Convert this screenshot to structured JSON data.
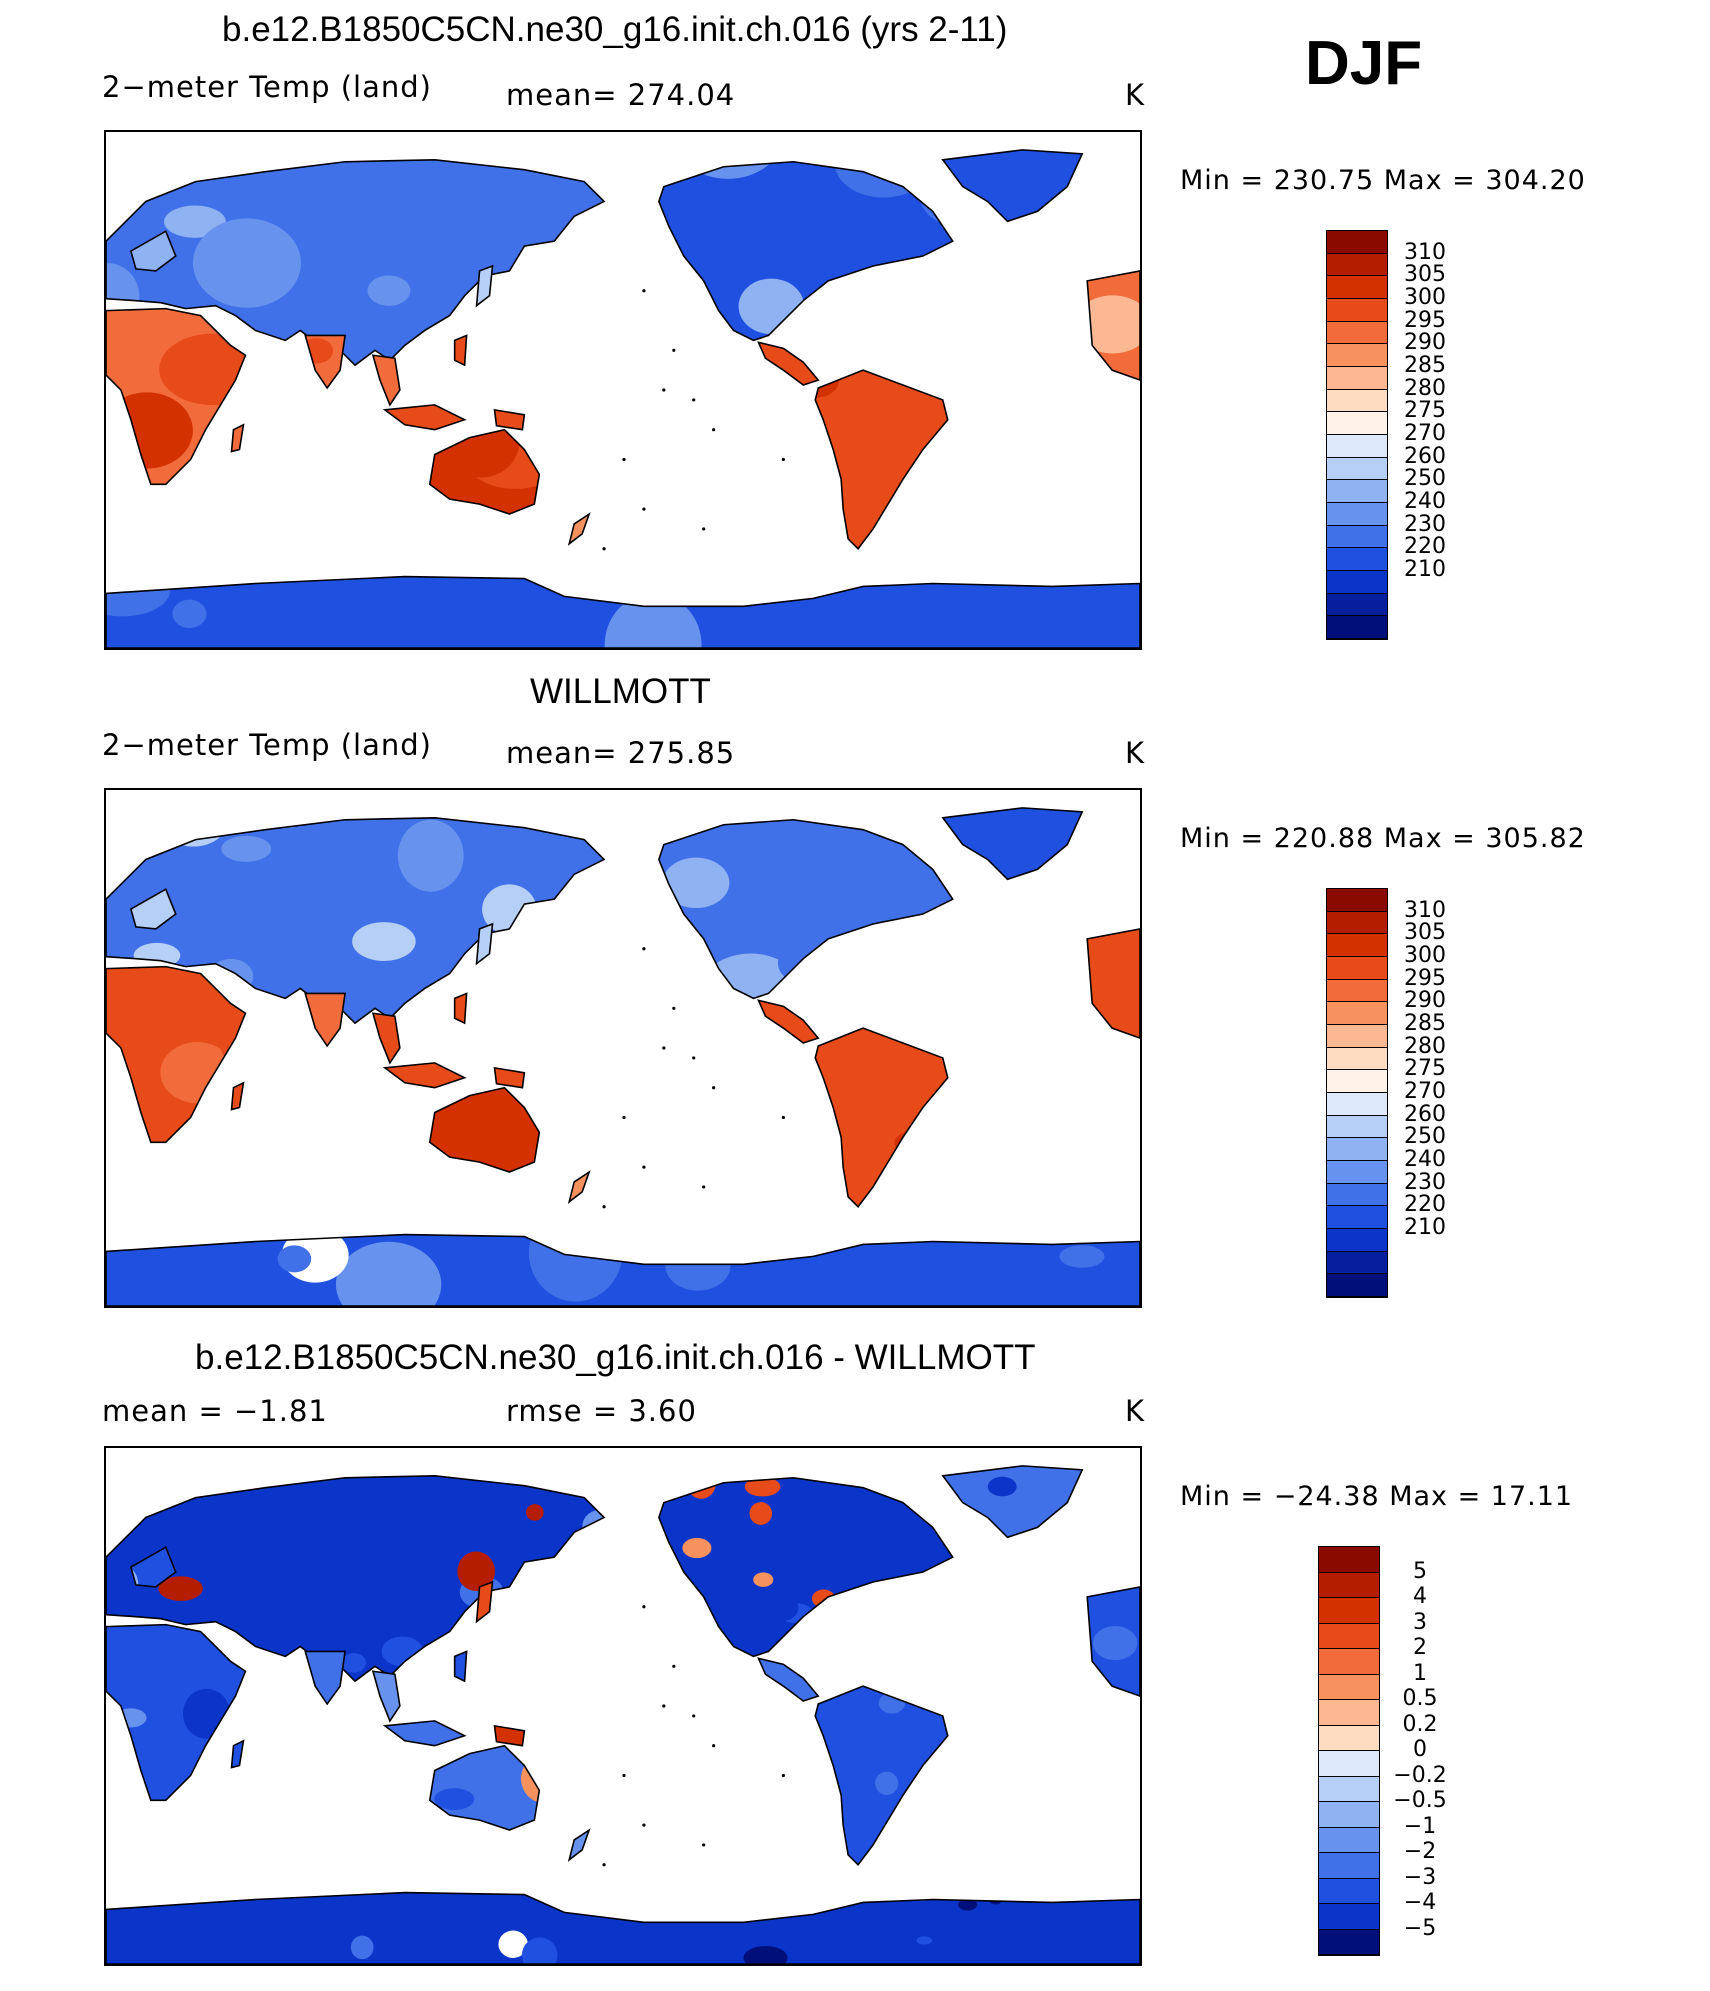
{
  "season": "DJF",
  "panels": [
    {
      "title": "b.e12.B1850C5CN.ne30_g16.init.ch.016 (yrs 2-11)",
      "left": "2−meter Temp (land)",
      "center": "mean=  274.04",
      "units": "K",
      "minmax": "Min  =  230.75  Max  =  304.20",
      "scheme": "model"
    },
    {
      "title": "WILLMOTT",
      "left": "2−meter Temp (land)",
      "center": "mean=  275.85",
      "units": "K",
      "minmax": "Min  =  220.88  Max  =  305.82",
      "scheme": "obs"
    },
    {
      "title": "b.e12.B1850C5CN.ne30_g16.init.ch.016 - WILLMOTT",
      "left": "mean  =    −1.81",
      "center": "rmse  =     3.60",
      "units": "K",
      "minmax": "Min  =  −24.38  Max  =    17.11",
      "scheme": "diff"
    }
  ],
  "colorbars": {
    "temp": {
      "labels": [
        "310",
        "305",
        "300",
        "295",
        "290",
        "285",
        "280",
        "275",
        "270",
        "260",
        "250",
        "240",
        "230",
        "220",
        "210"
      ],
      "colors": [
        "#8b0a00",
        "#b51d00",
        "#d33100",
        "#e84b1a",
        "#f26b3a",
        "#f7925e",
        "#fbb893",
        "#fddcc2",
        "#fff2e6",
        "#dbe9fa",
        "#b6cff6",
        "#8fb2f2",
        "#6792ee",
        "#4171e8",
        "#2050e0",
        "#0a35c8",
        "#051f9e",
        "#000f7a"
      ]
    },
    "diff": {
      "labels": [
        "5",
        "4",
        "3",
        "2",
        "1",
        "0.5",
        "0.2",
        "0",
        "−0.2",
        "−0.5",
        "−1",
        "−2",
        "−3",
        "−4",
        "−5"
      ],
      "colors": [
        "#8b0a00",
        "#b51d00",
        "#d33100",
        "#e84b1a",
        "#f26b3a",
        "#f7925e",
        "#fbb893",
        "#fddcc2",
        "#dbe9fa",
        "#b6cff6",
        "#8fb2f2",
        "#6792ee",
        "#4171e8",
        "#2050e0",
        "#0a35c8",
        "#000f7a"
      ]
    }
  }
}
